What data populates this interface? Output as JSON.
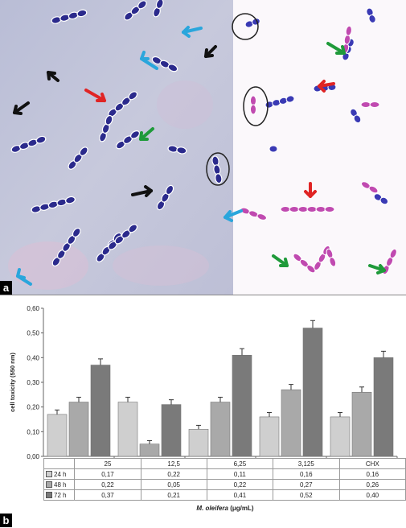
{
  "panel_labels": {
    "a": "a",
    "b": "b"
  },
  "chart_data": {
    "type": "bar",
    "xlabel_species": "M. oleifera",
    "xlabel_unit": "(μg/mL)",
    "ylabel": "cell toxicity (550 nm)",
    "ylim": [
      0,
      0.6
    ],
    "yticks": [
      "0,00",
      "0,10",
      "0,20",
      "0,30",
      "0,40",
      "0,50",
      "0,60"
    ],
    "categories": [
      "25",
      "12,5",
      "6,25",
      "3,125",
      "CHX"
    ],
    "series": [
      {
        "name": "24 h",
        "values": [
          0.17,
          0.22,
          0.11,
          0.16,
          0.16
        ],
        "labels": [
          "0,17",
          "0,22",
          "0,11",
          "0,16",
          "0,16"
        ],
        "color": "#cfcfcf"
      },
      {
        "name": "48 h",
        "values": [
          0.22,
          0.05,
          0.22,
          0.27,
          0.26
        ],
        "labels": [
          "0,22",
          "0,05",
          "0,22",
          "0,27",
          "0,26"
        ],
        "color": "#a9a9a9"
      },
      {
        "name": "72 h",
        "values": [
          0.37,
          0.21,
          0.41,
          0.52,
          0.4
        ],
        "labels": [
          "0,37",
          "0,21",
          "0,41",
          "0,52",
          "0,40"
        ],
        "color": "#7a7a7a"
      }
    ],
    "error_bars": true,
    "grid": false
  },
  "arrow_colors": {
    "black": "#111111",
    "blue": "#2aa6dc",
    "red": "#e02424",
    "green": "#1f9a3a"
  }
}
